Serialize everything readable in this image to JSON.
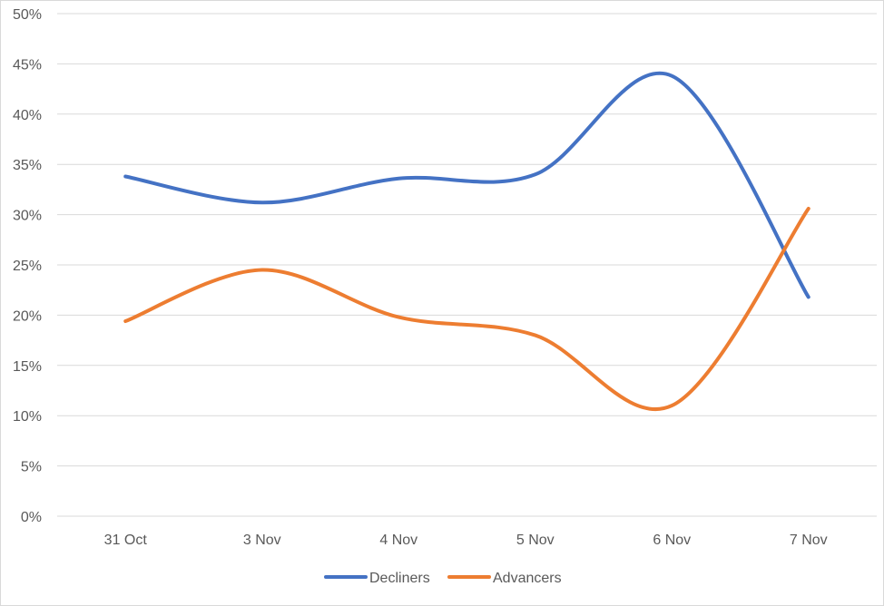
{
  "chart_data": {
    "type": "line",
    "categories": [
      "31 Oct",
      "3 Nov",
      "4 Nov",
      "5 Nov",
      "6 Nov",
      "7 Nov"
    ],
    "series": [
      {
        "name": "Decliners",
        "color": "#4472c4",
        "values": [
          33.8,
          31.2,
          33.6,
          34.0,
          43.8,
          21.8
        ]
      },
      {
        "name": "Advancers",
        "color": "#ed7d31",
        "values": [
          19.4,
          24.5,
          19.8,
          18.0,
          11.0,
          30.6
        ]
      }
    ],
    "y_ticks": [
      "0%",
      "5%",
      "10%",
      "15%",
      "20%",
      "25%",
      "30%",
      "35%",
      "40%",
      "45%",
      "50%"
    ],
    "ylim": [
      0,
      50
    ],
    "y_unit": "%",
    "smooth": true,
    "grid": true,
    "legend_position": "bottom"
  }
}
